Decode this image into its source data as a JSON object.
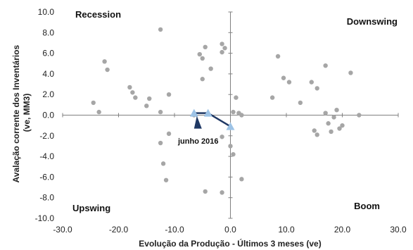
{
  "chart_data": {
    "type": "scatter",
    "xlabel": "Evolução da Produção - Últimos 3 meses (ve)",
    "ylabel_lines": [
      "Avalação corrente dos Inventários",
      "(ve, MM3)"
    ],
    "xlim": [
      -30,
      30
    ],
    "ylim": [
      -10,
      10
    ],
    "x_ticks": [
      "-30.0",
      "-20.0",
      "-10.0",
      "0.0",
      "10.0",
      "20.0",
      "30.0"
    ],
    "y_ticks": [
      "10.0",
      "8.0",
      "6.0",
      "4.0",
      "2.0",
      "0.0",
      "-2.0",
      "-4.0",
      "-6.0",
      "-8.0",
      "-10.0"
    ],
    "quadrant_labels": {
      "top_left": "Recession",
      "top_right": "Downswing",
      "bottom_left": "Upswing",
      "bottom_right": "Boom"
    },
    "annotation": "junho 2016",
    "colors": {
      "points": "#a6a6a6",
      "path": "#9dc3e6",
      "arrow": "#1f3864",
      "axes": "#808080"
    },
    "series": [
      {
        "points": [
          [
            -12.5,
            8.3
          ],
          [
            -22.5,
            5.2
          ],
          [
            -22.0,
            4.4
          ],
          [
            -24.5,
            1.2
          ],
          [
            -23.5,
            0.3
          ],
          [
            -18.0,
            2.7
          ],
          [
            -17.5,
            2.2
          ],
          [
            -17.0,
            1.7
          ],
          [
            -14.5,
            1.6
          ],
          [
            -15.0,
            0.9
          ],
          [
            -12.5,
            0.3
          ],
          [
            -11.0,
            2.0
          ],
          [
            -12.5,
            -2.7
          ],
          [
            -12.0,
            -4.7
          ],
          [
            -11.0,
            -1.8
          ],
          [
            -11.5,
            -6.3
          ],
          [
            -5.5,
            5.9
          ],
          [
            -5.0,
            5.5
          ],
          [
            -4.5,
            6.6
          ],
          [
            -3.5,
            4.5
          ],
          [
            -5.0,
            3.5
          ],
          [
            -1.5,
            6.9
          ],
          [
            -1.0,
            6.5
          ],
          [
            -1.5,
            6.1
          ],
          [
            -4.5,
            -7.4
          ],
          [
            -1.5,
            -7.5
          ],
          [
            0.0,
            -3.0
          ],
          [
            0.5,
            -3.8
          ],
          [
            0.5,
            0.3
          ],
          [
            1.0,
            1.7
          ],
          [
            1.5,
            0.2
          ],
          [
            2.0,
            0.0
          ],
          [
            2.0,
            -6.2
          ],
          [
            -1.5,
            -2.1
          ],
          [
            8.5,
            5.7
          ],
          [
            7.5,
            1.7
          ],
          [
            9.5,
            3.6
          ],
          [
            10.5,
            3.2
          ],
          [
            12.5,
            1.2
          ],
          [
            14.5,
            3.2
          ],
          [
            15.5,
            2.6
          ],
          [
            17.0,
            4.8
          ],
          [
            17.0,
            0.2
          ],
          [
            17.5,
            -0.8
          ],
          [
            18.0,
            -1.6
          ],
          [
            18.5,
            -0.2
          ],
          [
            19.0,
            0.5
          ],
          [
            20.0,
            -1.0
          ],
          [
            19.5,
            -1.3
          ],
          [
            15.0,
            -1.5
          ],
          [
            15.5,
            -1.9
          ],
          [
            21.5,
            4.1
          ],
          [
            23.0,
            0.0
          ],
          [
            -6.5,
            0.0
          ]
        ]
      }
    ],
    "path_points": [
      [
        -6.5,
        0.2
      ],
      [
        -4.0,
        0.2
      ],
      [
        0.0,
        -1.1
      ]
    ]
  }
}
